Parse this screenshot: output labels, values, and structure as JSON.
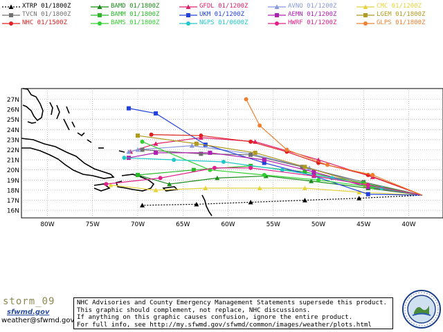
{
  "legend": [
    {
      "id": "XTRP",
      "label": "XTRP  01/1800Z",
      "color": "#000000",
      "marker": "triangle",
      "dash": true
    },
    {
      "id": "BAMD",
      "label": "BAMD 01/1800Z",
      "color": "#1a8c1a",
      "marker": "triangle"
    },
    {
      "id": "GFDL",
      "label": "GFDL  01/1200Z",
      "color": "#e0206a",
      "marker": "triangle"
    },
    {
      "id": "AVNO",
      "label": "AVNO 01/1200Z",
      "color": "#8899dd",
      "marker": "triangle"
    },
    {
      "id": "CMC",
      "label": "CMC  01/1200Z",
      "color": "#e6d23c",
      "marker": "triangle"
    },
    {
      "id": "TVCN",
      "label": "TVCN 01/1800Z",
      "color": "#707070",
      "marker": "square"
    },
    {
      "id": "BAMM",
      "label": "BAMM 01/1800Z",
      "color": "#2ab82a",
      "marker": "square"
    },
    {
      "id": "UKM",
      "label": "UKM  01/1200Z",
      "color": "#2040e0",
      "marker": "square"
    },
    {
      "id": "AEMN",
      "label": "AEMN 01/1200Z",
      "color": "#b020b0",
      "marker": "square"
    },
    {
      "id": "LGEM",
      "label": "LGEM 01/1800Z",
      "color": "#b09a20",
      "marker": "square"
    },
    {
      "id": "NHC",
      "label": "NHC  01/1500Z",
      "color": "#e02020",
      "marker": "circle"
    },
    {
      "id": "BAMS",
      "label": "BAMS 01/1800Z",
      "color": "#30d030",
      "marker": "circle"
    },
    {
      "id": "NGPS",
      "label": "NGPS 01/0600Z",
      "color": "#20c8c8",
      "marker": "circle"
    },
    {
      "id": "HWRF",
      "label": "HWRF 01/1200Z",
      "color": "#e0208a",
      "marker": "circle"
    },
    {
      "id": "GLPS",
      "label": "GLPS 01/1800Z",
      "color": "#f08030",
      "marker": "circle"
    }
  ],
  "axes": {
    "lat_labels": [
      "27N",
      "26N",
      "25N",
      "24N",
      "23N",
      "22N",
      "21N",
      "20N",
      "19N",
      "18N",
      "17N",
      "16N"
    ],
    "lon_labels": [
      "80W",
      "75W",
      "70W",
      "65W",
      "60W",
      "55W",
      "50W",
      "45W",
      "40W"
    ]
  },
  "tracks": {
    "XTRP": [
      [
        -38.5,
        17.5
      ],
      [
        -45.5,
        17.2
      ],
      [
        -51.5,
        17.0
      ],
      [
        -57.5,
        16.8
      ],
      [
        -63.5,
        16.6
      ],
      [
        -69.5,
        16.5
      ]
    ],
    "BAMD": [
      [
        -38.5,
        17.5
      ],
      [
        -44.5,
        18.2
      ],
      [
        -50.8,
        18.9
      ],
      [
        -55.8,
        19.4
      ],
      [
        -61.2,
        19.2
      ],
      [
        -66.5,
        18.6
      ],
      [
        -70.0,
        19.5
      ]
    ],
    "GFDL": [
      [
        -38.5,
        17.5
      ],
      [
        -44.0,
        19.3
      ],
      [
        -50.0,
        21.0
      ],
      [
        -57.0,
        22.8
      ],
      [
        -63.0,
        23.2
      ],
      [
        -68.0,
        22.6
      ],
      [
        -70.8,
        21.8
      ]
    ],
    "AVNO": [
      [
        -38.5,
        17.5
      ],
      [
        -44.5,
        18.5
      ],
      [
        -51.0,
        20.2
      ],
      [
        -57.5,
        21.6
      ],
      [
        -64.0,
        22.4
      ],
      [
        -70.0,
        22.0
      ],
      [
        -71.0,
        21.8
      ]
    ],
    "CMC": [
      [
        -38.5,
        17.5
      ],
      [
        -45.5,
        17.8
      ],
      [
        -51.5,
        18.2
      ],
      [
        -56.5,
        18.2
      ],
      [
        -62.5,
        18.2
      ],
      [
        -68.0,
        18.0
      ],
      [
        -73.0,
        18.5
      ]
    ],
    "TVCN": [
      [
        -38.5,
        17.5
      ],
      [
        -45.0,
        18.8
      ],
      [
        -51.8,
        20.3
      ],
      [
        -57.5,
        21.5
      ],
      [
        -63.0,
        21.6
      ],
      [
        -69.5,
        22.0
      ]
    ],
    "BAMM": [
      [
        -38.5,
        17.5
      ],
      [
        -45.0,
        18.7
      ],
      [
        -51.5,
        19.8
      ],
      [
        -57.5,
        20.4
      ],
      [
        -63.8,
        20.0
      ],
      [
        -70.0,
        19.5
      ]
    ],
    "UKM": [
      [
        -38.5,
        17.5
      ],
      [
        -44.5,
        17.6
      ],
      [
        -50.5,
        19.4
      ],
      [
        -56.0,
        20.7
      ],
      [
        -62.5,
        22.5
      ],
      [
        -68.0,
        25.6
      ],
      [
        -71.0,
        26.1
      ]
    ],
    "AEMN": [
      [
        -38.5,
        17.5
      ],
      [
        -44.5,
        18.3
      ],
      [
        -50.5,
        19.8
      ],
      [
        -56.0,
        21.0
      ],
      [
        -62.0,
        21.7
      ],
      [
        -68.0,
        21.7
      ],
      [
        -71.0,
        21.2
      ]
    ],
    "LGEM": [
      [
        -38.5,
        17.5
      ],
      [
        -44.8,
        18.5
      ],
      [
        -51.5,
        20.3
      ],
      [
        -57.0,
        21.7
      ],
      [
        -63.5,
        22.6
      ],
      [
        -70.0,
        23.4
      ]
    ],
    "NHC": [
      [
        -38.5,
        17.5
      ],
      [
        -44.5,
        19.5
      ],
      [
        -50.0,
        20.7
      ],
      [
        -53.5,
        21.8
      ],
      [
        -57.5,
        22.8
      ],
      [
        -63.0,
        23.4
      ],
      [
        -68.5,
        23.5
      ]
    ],
    "BAMS": [
      [
        -38.5,
        17.5
      ],
      [
        -44.0,
        18.3
      ],
      [
        -50.0,
        19.0
      ],
      [
        -56.0,
        19.5
      ],
      [
        -62.0,
        20.0
      ],
      [
        -69.5,
        22.8
      ]
    ],
    "NGPS": [
      [
        -38.5,
        17.5
      ],
      [
        -43.0,
        18.2
      ],
      [
        -48.5,
        19.2
      ],
      [
        -54.0,
        20.0
      ],
      [
        -60.5,
        20.8
      ],
      [
        -66.0,
        21.0
      ],
      [
        -71.5,
        21.2
      ]
    ],
    "HWRF": [
      [
        -38.5,
        17.5
      ],
      [
        -44.5,
        18.5
      ],
      [
        -50.5,
        19.4
      ],
      [
        -57.5,
        20.2
      ],
      [
        -61.5,
        20.2
      ],
      [
        -67.5,
        19.2
      ],
      [
        -73.5,
        18.6
      ]
    ],
    "GLPS": [
      [
        -38.5,
        17.5
      ],
      [
        -44.0,
        19.5
      ],
      [
        -49.0,
        20.5
      ],
      [
        -53.5,
        22.0
      ],
      [
        -56.5,
        24.4
      ],
      [
        -58.0,
        27.0
      ]
    ]
  },
  "footer": {
    "storm_id": "storm_09",
    "logo_text": "sfwmd.gov",
    "email": "weather@sfwmd.gov",
    "disclaimer_lines": [
      "NHC Advisories and County Emergency Management Statements supersede this product.",
      "This graphic should complement, not replace, NHC discussions.",
      "If anything on this graphic causes confusion, ignore the entire product.",
      "For full info, see  http://my.sfwmd.gov/sfwmd/common/images/weather/plots.html"
    ]
  }
}
